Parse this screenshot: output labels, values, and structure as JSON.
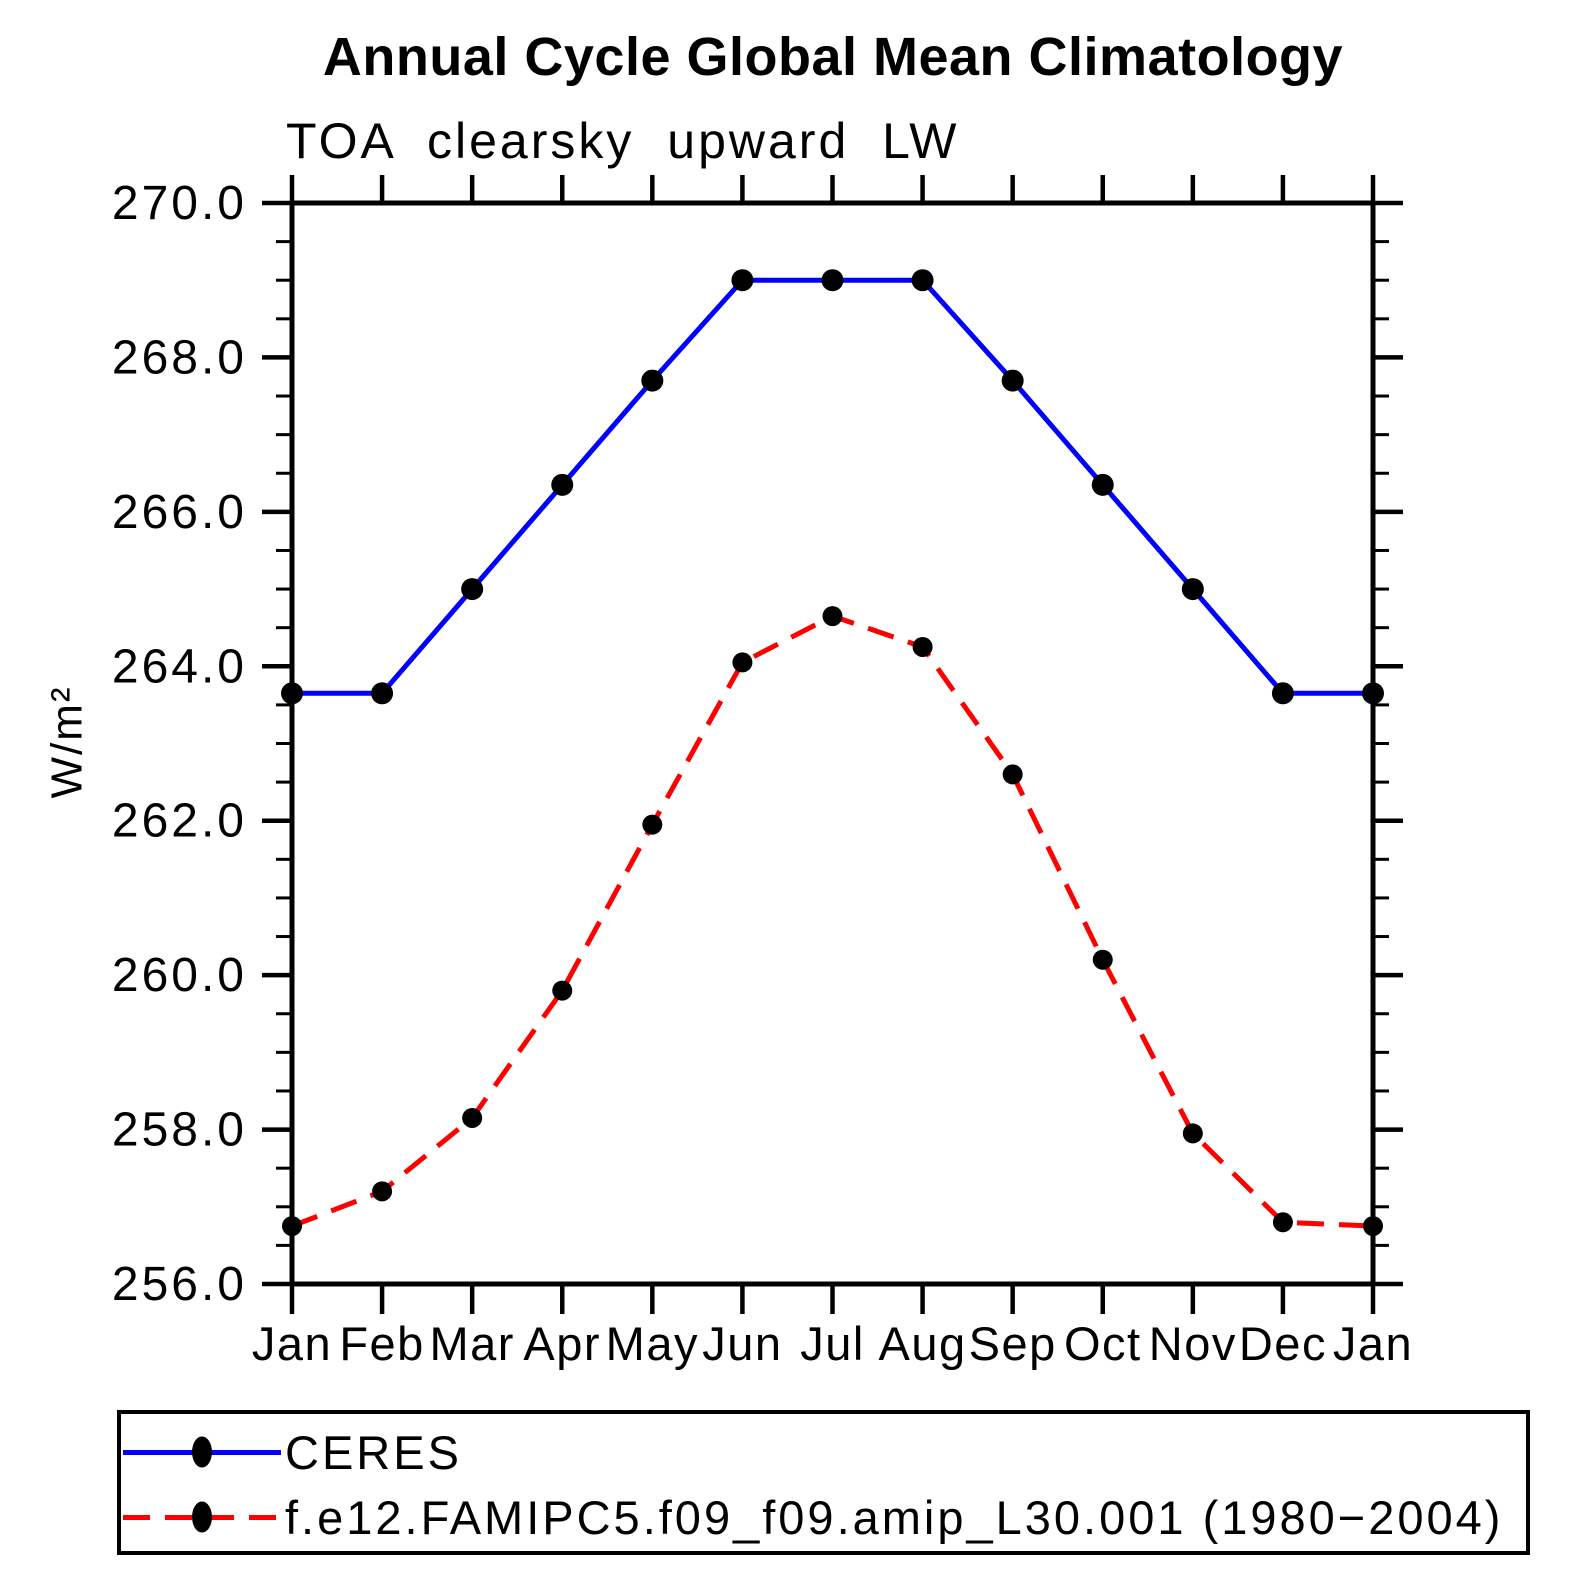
{
  "page": {
    "title": "Annual Cycle Global Mean Climatology",
    "subtitle": "TOA clearsky upward LW"
  },
  "chart_data": {
    "type": "line",
    "title": "Annual Cycle Global Mean Climatology",
    "subtitle": "TOA clearsky upward LW",
    "xlabel": "",
    "ylabel": "W/m²",
    "categories": [
      "Jan",
      "Feb",
      "Mar",
      "Apr",
      "May",
      "Jun",
      "Jul",
      "Aug",
      "Sep",
      "Oct",
      "Nov",
      "Dec",
      "Jan"
    ],
    "ylim": [
      256.0,
      270.0
    ],
    "ytick_labels": [
      "256.0",
      "258.0",
      "260.0",
      "262.0",
      "264.0",
      "266.0",
      "268.0",
      "270.0"
    ],
    "ytick_major_interval": 2.0,
    "ytick_minor_interval": 0.5,
    "grid": false,
    "legend_position": "bottom",
    "axis_color": "#000000",
    "series": [
      {
        "name": "CERES",
        "color": "#0000ff",
        "style": "solid",
        "marker": "circle",
        "marker_color": "#000000",
        "values": [
          263.65,
          263.65,
          265.0,
          266.35,
          267.7,
          269.0,
          269.0,
          269.0,
          267.7,
          266.35,
          265.0,
          263.65,
          263.65
        ]
      },
      {
        "name": "f.e12.FAMIPC5.f09_f09.amip_L30.001 (1980−2004)",
        "color": "#ff0000",
        "style": "dashed",
        "marker": "circle",
        "marker_color": "#000000",
        "values": [
          256.75,
          257.2,
          258.15,
          259.8,
          261.95,
          264.05,
          264.65,
          264.25,
          262.6,
          260.2,
          257.95,
          256.8,
          256.75
        ]
      }
    ]
  },
  "legend": {
    "items": [
      {
        "label": "CERES"
      },
      {
        "label": "f.e12.FAMIPC5.f09_f09.amip_L30.001 (1980−2004)"
      }
    ]
  }
}
